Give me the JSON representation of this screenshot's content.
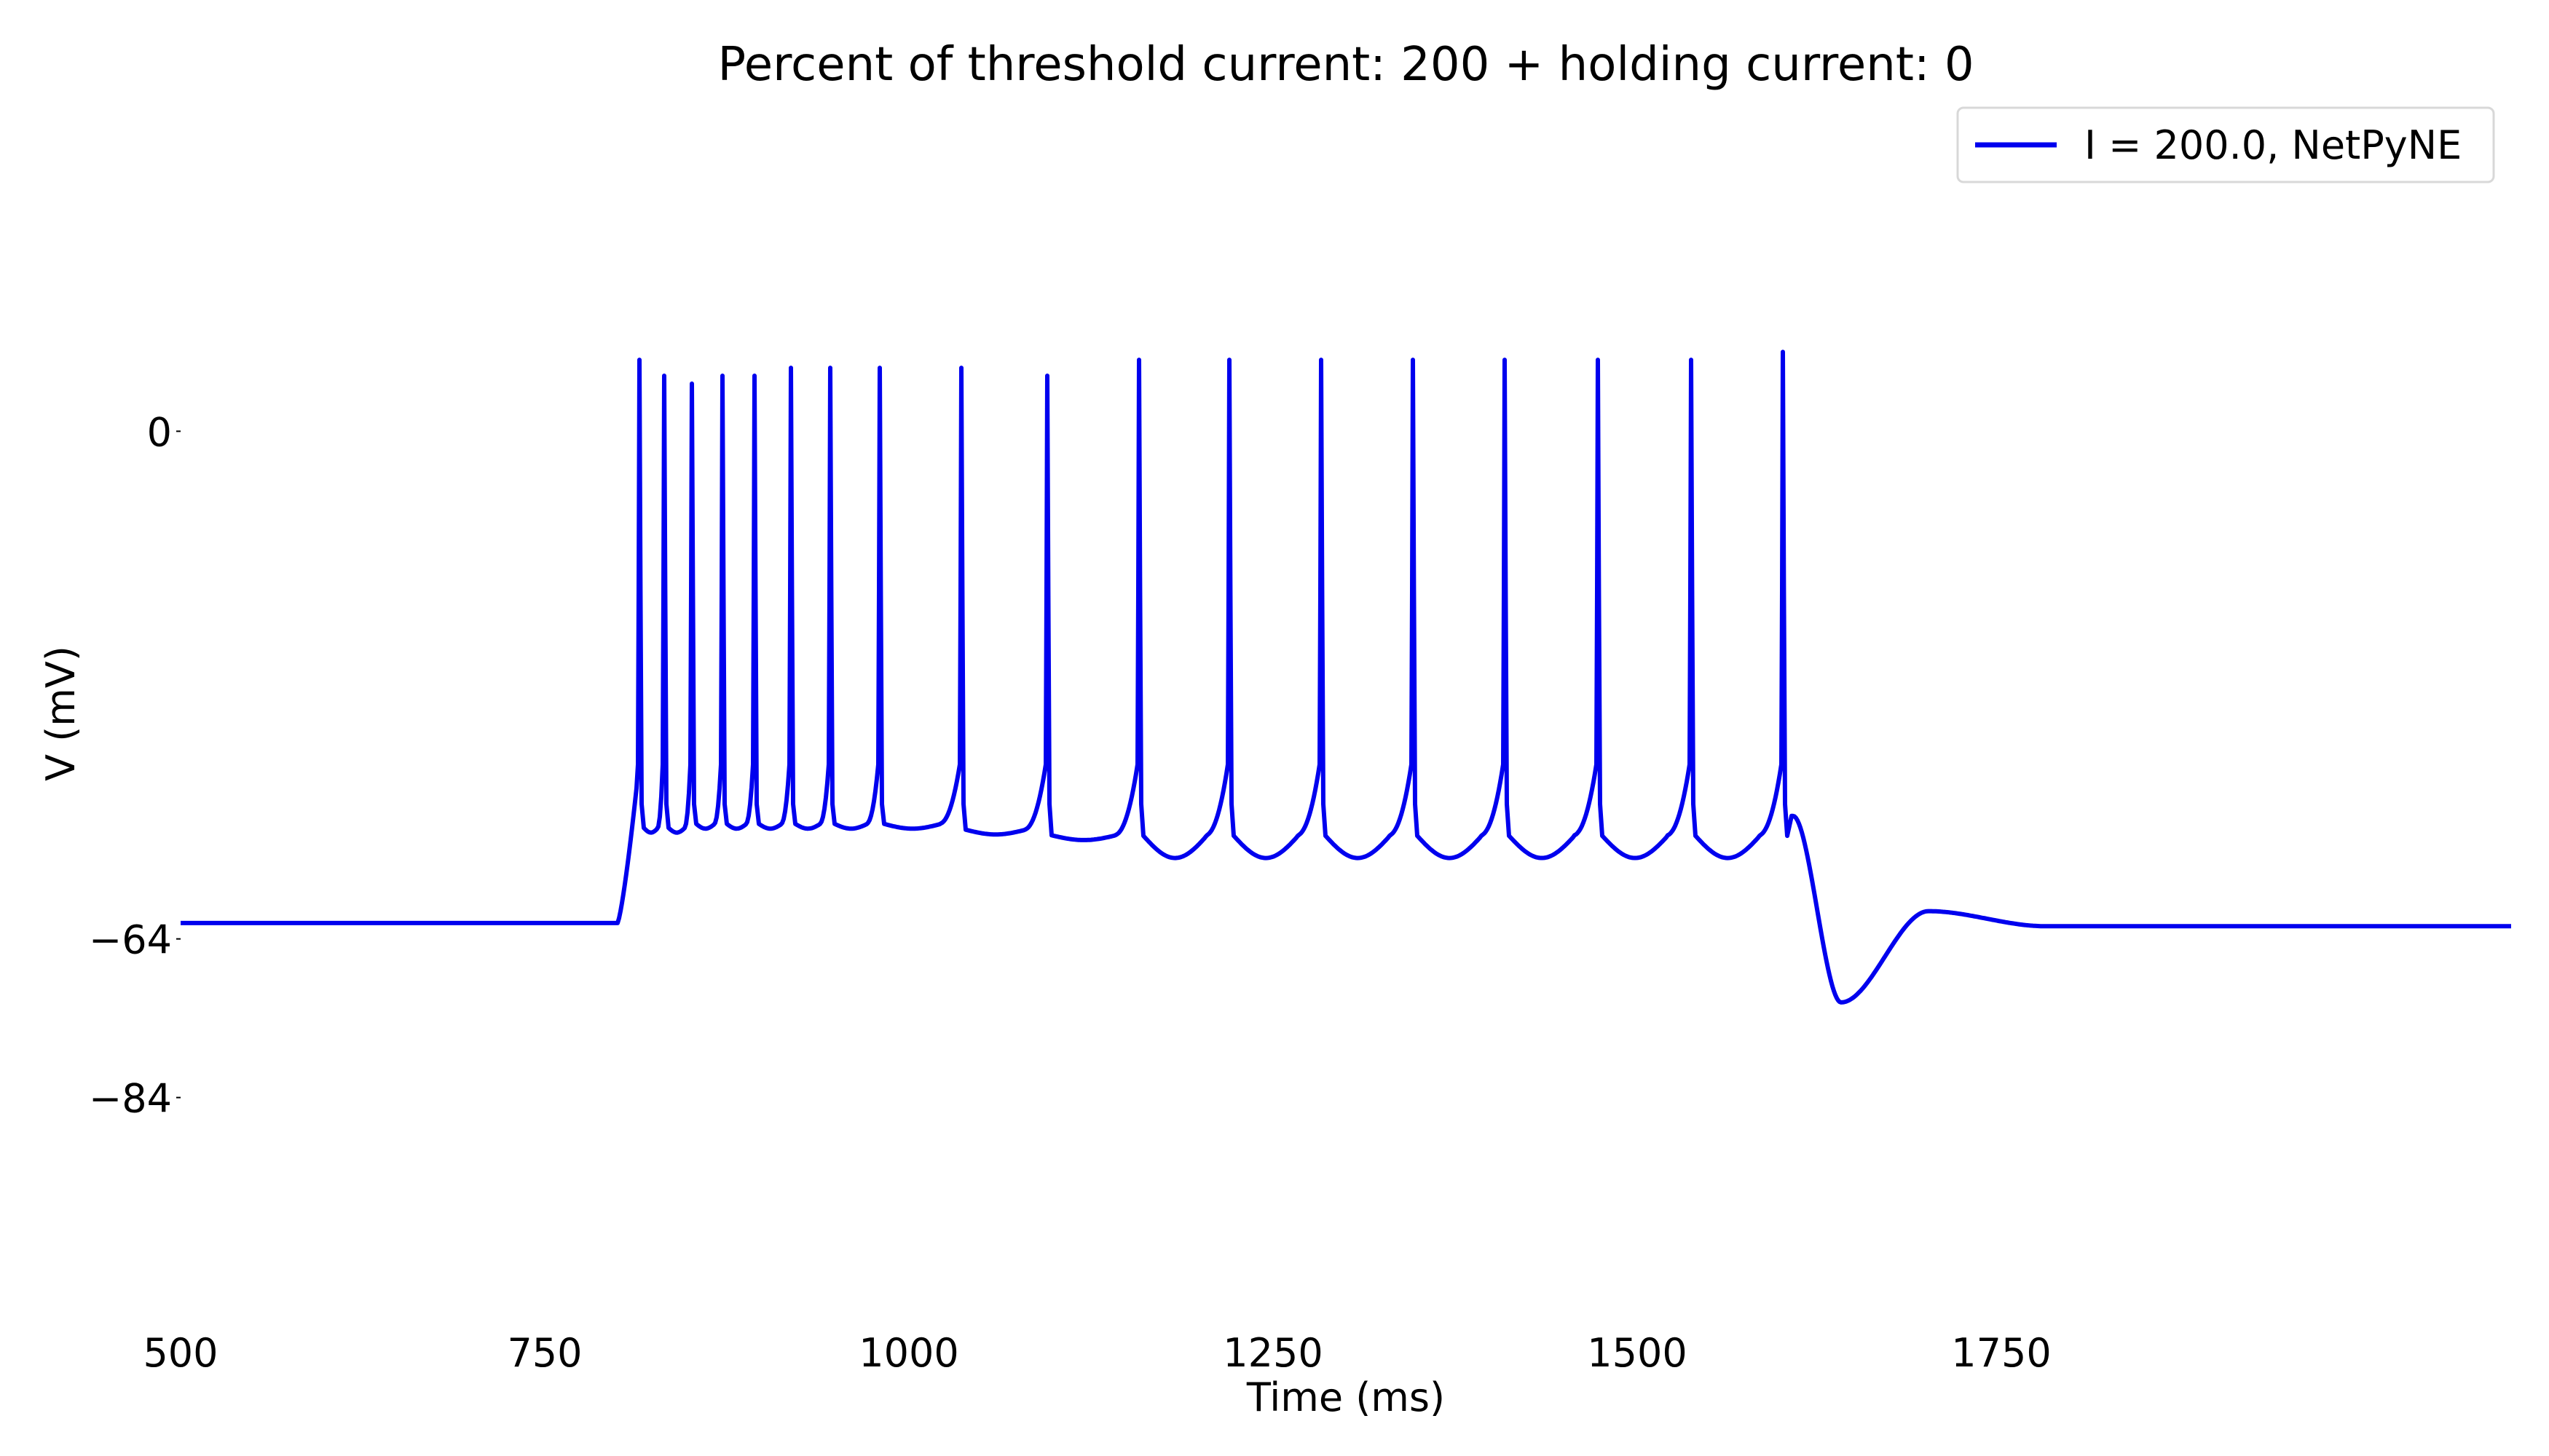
{
  "chart_data": {
    "type": "line",
    "title": "Percent of threshold current: 200 + holding current: 0",
    "xlabel": "Time (ms)",
    "ylabel": "V (mV)",
    "xlim": [
      500,
      2100
    ],
    "ylim": [
      -109,
      25
    ],
    "x_ticks": [
      500,
      750,
      1000,
      1250,
      1500,
      1750
    ],
    "x_tick_labels": [
      "500",
      "750",
      "1000",
      "1250",
      "1500",
      "1750"
    ],
    "y_ticks": [
      0,
      -64,
      -84
    ],
    "y_tick_labels": [
      "0",
      "−64",
      "−84"
    ],
    "grid": false,
    "legend": {
      "position": "top-right"
    },
    "colors": {
      "series": "#0000ee"
    },
    "series": [
      {
        "name": "I = 200.0, NetPyNE",
        "resting_potential": -62,
        "stimulus_window": [
          800,
          1600
        ],
        "spike_times": [
          815,
          832,
          851,
          872,
          894,
          919,
          946,
          980,
          1036,
          1095,
          1158,
          1220,
          1283,
          1346,
          1409,
          1473,
          1537,
          1600
        ],
        "spike_peaks": [
          9,
          7,
          6,
          7,
          7,
          8,
          8,
          8,
          8,
          7,
          9,
          9,
          9,
          9,
          9,
          9,
          9,
          10
        ],
        "trough_after_stimulus": {
          "x": 1640,
          "y": -72
        },
        "post_stimulus_level": -62.4
      }
    ]
  }
}
